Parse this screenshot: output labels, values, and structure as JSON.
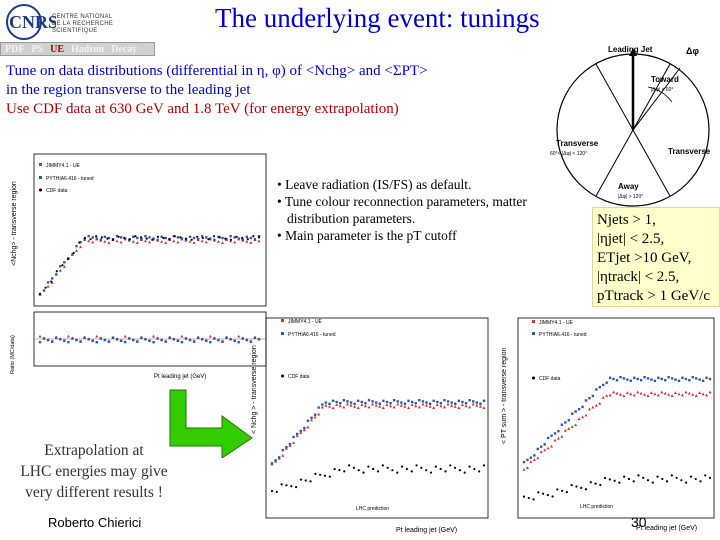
{
  "header": {
    "logo_letters": "CNRS",
    "logo_lines": [
      "CENTRE NATIONAL",
      "DE LA RECHERCHE",
      "SCIENTIFIQUE"
    ],
    "title": "The underlying event: tunings"
  },
  "nav": {
    "items": [
      "PDF",
      "PS",
      "UE",
      "Hadron",
      "Decay"
    ],
    "active_index": 2
  },
  "intro": {
    "line1_prefix": "Tune on data distributions (differential in η, φ) of ",
    "nchg": "<Nchg>",
    "line1_and": " and ",
    "sumpt": "<ΣPT>",
    "line2": "in the region transverse to the leading jet",
    "line3": "Use CDF data at 630 GeV and 1.8 TeV (for energy extrapolation)"
  },
  "bullets": [
    "• Leave radiation (IS/FS) as default.",
    "• Tune colour reconnection parameters, matter distribution parameters.",
    "• Main parameter is the pT cutoff"
  ],
  "cuts": [
    "Njets > 1,",
    "|ηjet| < 2.5,",
    "ETjet >10 GeV,",
    "|ηtrack| < 2.5,",
    "pTtrack > 1 GeV/c"
  ],
  "diagram": {
    "leading_jet": "Leading Jet",
    "delta_phi": "Δφ",
    "toward": "Toward",
    "toward_range": "|Δφ| < 60°",
    "transverse": "Transverse",
    "transverse_range": "60°< |Δφ| < 120°",
    "away": "Away",
    "away_range": "|Δφ| > 120°"
  },
  "extrapolation": [
    "Extrapolation at",
    "LHC energies may give",
    "very different results !"
  ],
  "footer": {
    "author": "Roberto Chierici",
    "page": "30"
  },
  "plots": {
    "left": {
      "ylabel": "<Nchg> - transverse region",
      "ratio_ylabel": "Ratio (MC/data)",
      "xlabel": "Pt leading jet (GeV)",
      "legend": [
        "JIMMY4.1 - UE",
        "PYTHIA6.416 - tuned",
        "CDF data"
      ]
    },
    "middle": {
      "ylabel": "< Nchg > - transverse region",
      "xlabel": "Pt leading jet (GeV)",
      "legend": [
        "JIMMY4.1 - UE",
        "PYTHIA6.416 - tuned",
        "CDF data"
      ],
      "note": "LHC prediction"
    },
    "right": {
      "ylabel": "< PT sum > - transverse region",
      "xlabel": "Pt leading jet (GeV)",
      "legend": [
        "JIMMY4.1 - UE",
        "PYTHIA6.416 - tuned",
        "CDF data"
      ],
      "note": "LHC prediction"
    }
  },
  "colors": {
    "title": "#0000cc",
    "intro_red": "#b00000",
    "cuts_bg": "#ffffcc",
    "arrow": "#33cc00",
    "jimmy": "#cc3333",
    "pythia": "#3355aa",
    "data": "#000000"
  }
}
